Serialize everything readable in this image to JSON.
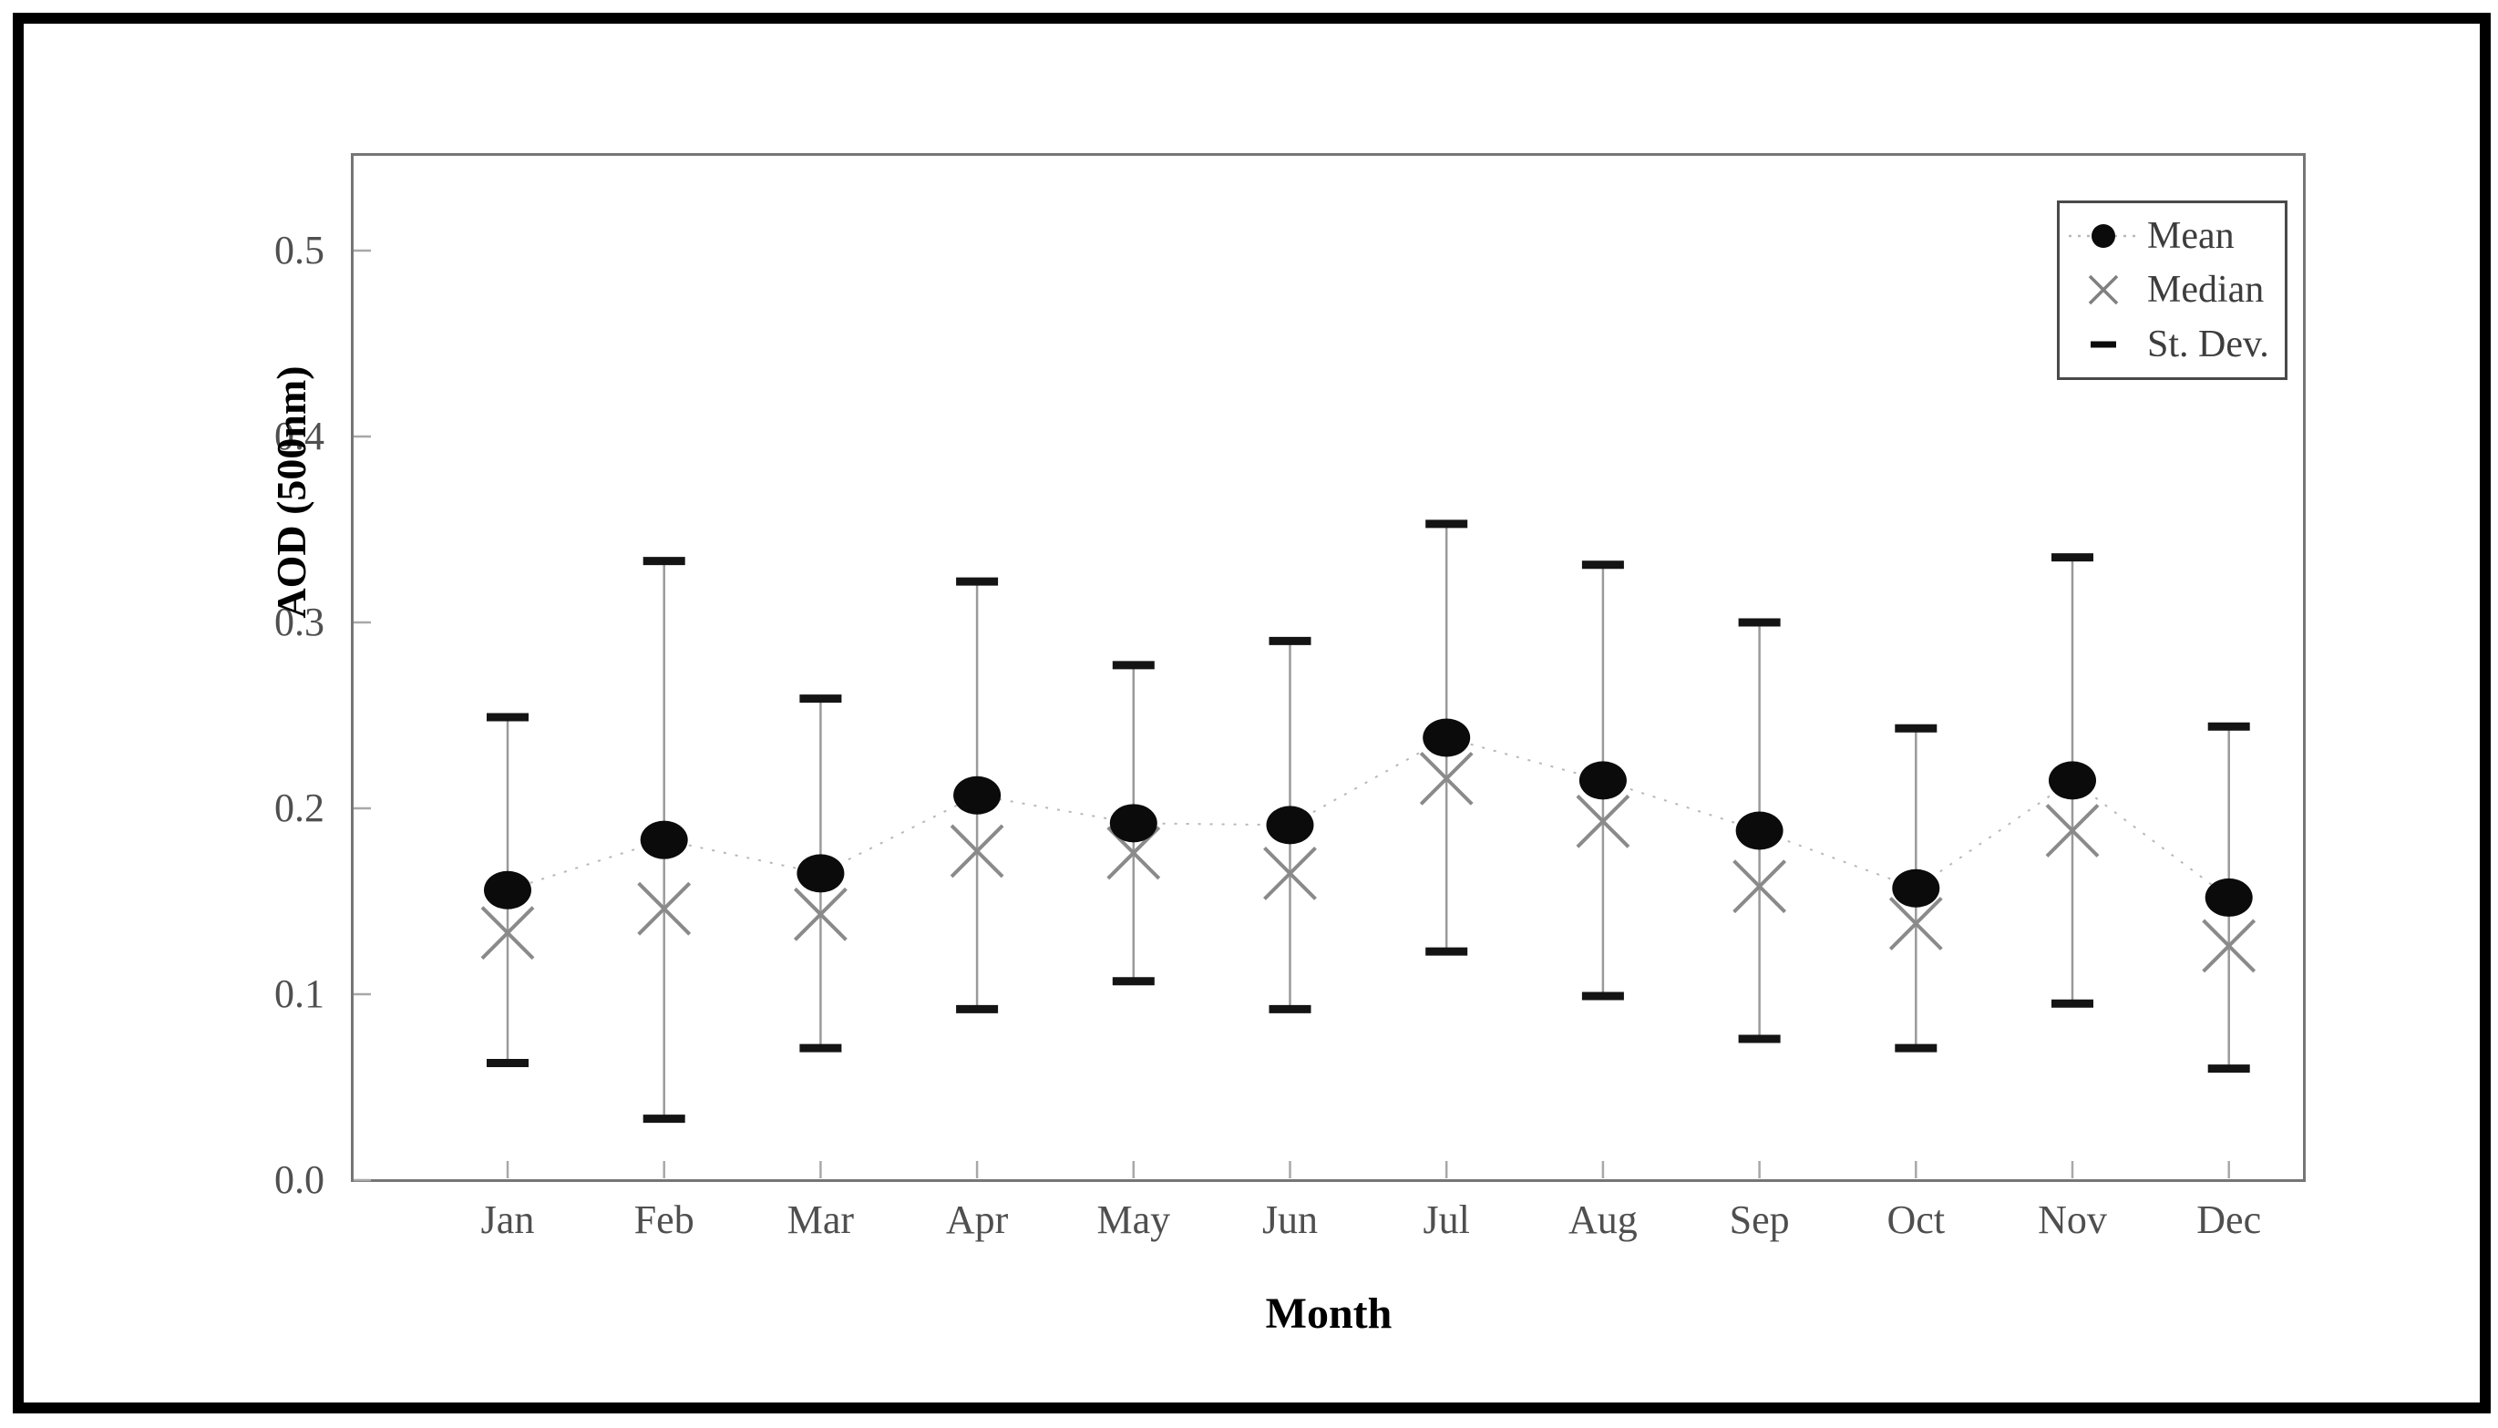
{
  "chart_data": {
    "type": "line",
    "title": "",
    "xlabel": "Month",
    "ylabel": "AOD (500nm)",
    "categories": [
      "Jan",
      "Feb",
      "Mar",
      "Apr",
      "May",
      "Jun",
      "Jul",
      "Aug",
      "Sep",
      "Oct",
      "Nov",
      "Dec"
    ],
    "y_ticks": [
      "0.0",
      "0.1",
      "0.2",
      "0.3",
      "0.4",
      "0.5"
    ],
    "y_tick_values": [
      0.0,
      0.1,
      0.2,
      0.3,
      0.4,
      0.5
    ],
    "ylim": [
      0,
      0.55
    ],
    "grid": false,
    "legend_position": "top-right",
    "series": [
      {
        "name": "Mean",
        "marker": "filled-circle",
        "values": [
          0.156,
          0.183,
          0.165,
          0.207,
          0.192,
          0.191,
          0.238,
          0.215,
          0.188,
          0.157,
          0.215,
          0.152
        ]
      },
      {
        "name": "Median",
        "marker": "x",
        "values": [
          0.133,
          0.146,
          0.143,
          0.177,
          0.176,
          0.165,
          0.216,
          0.193,
          0.158,
          0.138,
          0.188,
          0.126
        ]
      },
      {
        "name": "St. Dev.",
        "marker": "dash",
        "role": "error-bar-half-width",
        "values": [
          0.093,
          0.15,
          0.094,
          0.115,
          0.085,
          0.099,
          0.115,
          0.116,
          0.112,
          0.086,
          0.12,
          0.092
        ]
      }
    ],
    "colors": {
      "mean_marker": "#0b0b0b",
      "median_marker": "#8a8a8a",
      "error_line": "#9a9a9a",
      "error_cap": "#141414",
      "mean_connector": "#b8b8b8",
      "axis_border": "#767676",
      "tick_label": "#4f4f4f",
      "legend_text": "#3d3d3d"
    }
  }
}
